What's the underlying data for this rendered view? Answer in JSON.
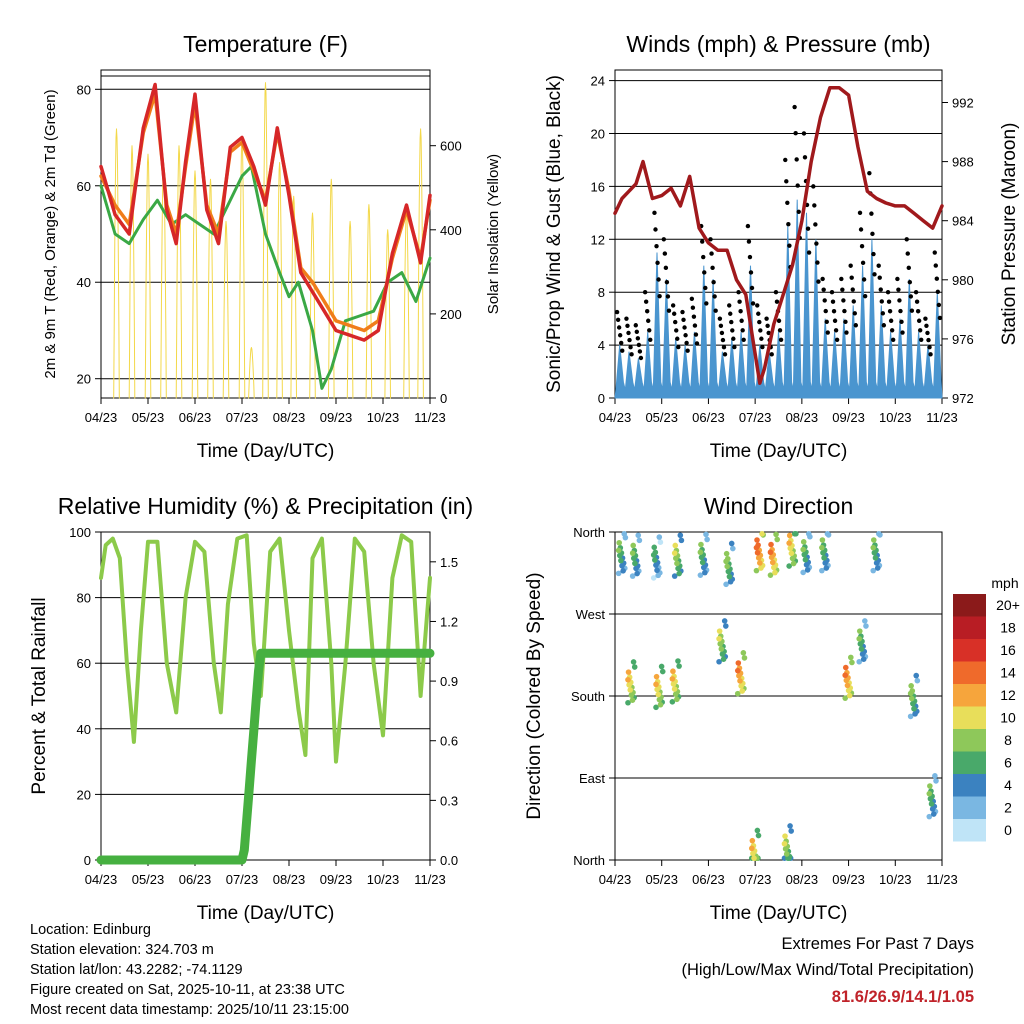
{
  "chart_data": [
    {
      "type": "line",
      "title": "Temperature (F)",
      "xlabel": "Time (Day/UTC)",
      "ylabel": "2m & 9m T (Red, Orange) & 2m Td (Green)",
      "ylabel_right": "Solar Insolation (Yellow)",
      "x_ticks": [
        "04/23",
        "05/23",
        "06/23",
        "07/23",
        "08/23",
        "09/23",
        "10/23",
        "11/23"
      ],
      "ylim": [
        16,
        84
      ],
      "y_ticks": [
        20,
        40,
        60,
        80
      ],
      "ylim_right": [
        0,
        780
      ],
      "y_ticks_right": [
        0,
        200,
        400,
        600
      ],
      "series": [
        {
          "name": "2m T",
          "color": "#d62728",
          "x": [
            0,
            0.3,
            0.6,
            0.9,
            1.15,
            1.4,
            1.6,
            1.8,
            2.0,
            2.25,
            2.5,
            2.75,
            3.0,
            3.25,
            3.5,
            3.75,
            4.0,
            4.25,
            4.5,
            4.75,
            5.0,
            5.3,
            5.6,
            5.9,
            6.2,
            6.5,
            6.8,
            7.0
          ],
          "values": [
            64,
            54,
            50,
            72,
            81,
            55,
            48,
            65,
            79,
            55,
            48,
            68,
            70,
            64,
            56,
            72,
            58,
            42,
            38,
            34,
            30,
            29,
            28,
            30,
            46,
            56,
            44,
            58
          ]
        },
        {
          "name": "9m T",
          "color": "#f07d1a",
          "x": [
            0,
            0.3,
            0.6,
            0.9,
            1.15,
            1.4,
            1.6,
            1.8,
            2.0,
            2.25,
            2.5,
            2.75,
            3.0,
            3.25,
            3.5,
            3.75,
            4.0,
            4.25,
            4.5,
            4.75,
            5.0,
            5.3,
            5.6,
            5.9,
            6.2,
            6.5,
            6.8,
            7.0
          ],
          "values": [
            62,
            56,
            52,
            71,
            79,
            56,
            50,
            64,
            77,
            56,
            50,
            67,
            69,
            63,
            57,
            71,
            59,
            43,
            40,
            36,
            32,
            31,
            30,
            32,
            45,
            55,
            45,
            57
          ]
        },
        {
          "name": "2m Td",
          "color": "#3aa845",
          "x": [
            0,
            0.3,
            0.6,
            0.9,
            1.2,
            1.5,
            1.8,
            2.1,
            2.4,
            2.7,
            3.0,
            3.2,
            3.5,
            3.8,
            4.0,
            4.2,
            4.5,
            4.7,
            4.9,
            5.2,
            5.5,
            5.8,
            6.1,
            6.4,
            6.7,
            7.0
          ],
          "values": [
            60,
            50,
            48,
            53,
            57,
            52,
            54,
            52,
            50,
            56,
            62,
            64,
            50,
            42,
            37,
            40,
            30,
            18,
            22,
            32,
            33,
            34,
            40,
            42,
            36,
            45
          ]
        },
        {
          "name": "Solar Insolation",
          "color": "#f3d84a",
          "axis": "right",
          "peak_x": [
            0.33,
            0.66,
            1.0,
            1.33,
            1.66,
            2.0,
            2.33,
            2.66,
            3.0,
            3.2,
            3.5,
            3.8,
            4.1,
            4.5,
            4.9,
            5.3,
            5.7,
            6.1,
            6.5,
            6.8
          ],
          "peak_values": [
            640,
            600,
            580,
            560,
            600,
            540,
            520,
            420,
            620,
            120,
            750,
            560,
            480,
            440,
            520,
            420,
            460,
            400,
            450,
            640
          ]
        }
      ]
    },
    {
      "type": "line",
      "title": "Winds (mph) & Pressure (mb)",
      "xlabel": "Time (Day/UTC)",
      "ylabel": "Sonic/Prop Wind & Gust (Blue, Black)",
      "ylabel_right": "Station Pressure (Maroon)",
      "x_ticks": [
        "04/23",
        "05/23",
        "06/23",
        "07/23",
        "08/23",
        "09/23",
        "10/23",
        "11/23"
      ],
      "ylim": [
        0,
        24.8
      ],
      "y_ticks": [
        0,
        4,
        8,
        12,
        16,
        20,
        24
      ],
      "ylim_right": [
        972,
        994.2
      ],
      "y_ticks_right": [
        972,
        976,
        980,
        984,
        988,
        992
      ],
      "series": [
        {
          "name": "Station Pressure",
          "color": "#a0191c",
          "axis": "right",
          "x": [
            0,
            0.15,
            0.3,
            0.45,
            0.6,
            0.8,
            1.0,
            1.2,
            1.4,
            1.6,
            1.8,
            2.0,
            2.2,
            2.4,
            2.6,
            2.8,
            3.0,
            3.1,
            3.2,
            3.4,
            3.6,
            3.8,
            4.0,
            4.2,
            4.4,
            4.6,
            4.8,
            5.0,
            5.2,
            5.4,
            5.6,
            5.8,
            6.0,
            6.2,
            6.4,
            6.6,
            6.8,
            7.0
          ],
          "values": [
            984.5,
            985.5,
            986,
            986.5,
            988,
            985.5,
            985.7,
            986.2,
            985,
            987,
            983.5,
            982.5,
            982,
            982,
            980,
            979,
            975,
            973,
            974,
            977,
            979,
            981,
            984,
            988,
            991,
            993,
            993,
            992.5,
            989,
            986,
            985.5,
            985.2,
            985,
            985,
            984.5,
            984,
            983.5,
            985
          ]
        },
        {
          "name": "Wind Gust",
          "color": "#000000",
          "style": "points",
          "x": [
            0.1,
            0.3,
            0.5,
            0.7,
            0.9,
            1.1,
            1.3,
            1.5,
            1.7,
            1.9,
            2.1,
            2.3,
            2.5,
            2.7,
            2.9,
            3.1,
            3.3,
            3.5,
            3.7,
            3.9,
            4.1,
            4.3,
            4.5,
            4.7,
            4.9,
            5.1,
            5.3,
            5.5,
            5.7,
            5.9,
            6.1,
            6.3,
            6.5,
            6.7,
            6.9
          ],
          "values": [
            6.5,
            6,
            5.5,
            8,
            14,
            12,
            7,
            6.5,
            7.5,
            13,
            12,
            6,
            7,
            8,
            13,
            7,
            6,
            8,
            18,
            22,
            20,
            16,
            9,
            8,
            9,
            10,
            14,
            17,
            10,
            8,
            9,
            12,
            8,
            6,
            11
          ]
        },
        {
          "name": "Sonic/Prop Wind",
          "color": "#4a95cf",
          "style": "area",
          "x": [
            0.1,
            0.3,
            0.5,
            0.7,
            0.9,
            1.1,
            1.3,
            1.5,
            1.7,
            1.9,
            2.1,
            2.3,
            2.5,
            2.7,
            2.9,
            3.1,
            3.3,
            3.5,
            3.7,
            3.9,
            4.1,
            4.3,
            4.5,
            4.7,
            4.9,
            5.1,
            5.3,
            5.5,
            5.7,
            5.9,
            6.1,
            6.3,
            6.5,
            6.7,
            6.9
          ],
          "values": [
            4,
            3.5,
            3,
            5,
            11,
            9,
            4.5,
            4,
            5,
            10,
            9,
            3.5,
            4.5,
            5,
            10,
            4,
            3.5,
            5,
            13,
            15,
            14,
            12,
            6,
            5,
            6,
            7,
            10,
            12,
            7,
            5,
            6,
            9,
            5,
            4,
            8
          ]
        }
      ]
    },
    {
      "type": "line",
      "title": "Relative Humidity (%) & Precipitation (in)",
      "xlabel": "Time (Day/UTC)",
      "ylabel": "Percent & Total Rainfall",
      "x_ticks": [
        "04/23",
        "05/23",
        "06/23",
        "07/23",
        "08/23",
        "09/23",
        "10/23",
        "11/23"
      ],
      "ylim": [
        0,
        100
      ],
      "y_ticks": [
        0,
        20,
        40,
        60,
        80,
        100
      ],
      "ylim_right": [
        0,
        1.65
      ],
      "y_ticks_right": [
        0.0,
        0.3,
        0.6,
        0.9,
        1.2,
        1.5
      ],
      "series": [
        {
          "name": "Relative Humidity",
          "color": "#8cca4a",
          "x": [
            0,
            0.1,
            0.25,
            0.4,
            0.55,
            0.7,
            0.85,
            1.0,
            1.2,
            1.4,
            1.6,
            1.8,
            2.0,
            2.2,
            2.4,
            2.55,
            2.7,
            2.9,
            3.1,
            3.25,
            3.4,
            3.6,
            3.8,
            4.0,
            4.2,
            4.35,
            4.5,
            4.7,
            4.9,
            5.0,
            5.2,
            5.4,
            5.6,
            5.8,
            6.0,
            6.2,
            6.4,
            6.6,
            6.8,
            7.0
          ],
          "values": [
            86,
            96,
            98,
            92,
            60,
            36,
            70,
            97,
            97,
            60,
            45,
            80,
            97,
            94,
            60,
            45,
            78,
            98,
            99,
            66,
            50,
            94,
            98,
            70,
            46,
            32,
            92,
            98,
            60,
            30,
            60,
            98,
            94,
            60,
            38,
            86,
            99,
            97,
            50,
            86
          ]
        },
        {
          "name": "Total Precipitation",
          "color": "#46b040",
          "axis": "right",
          "x": [
            0,
            3.0,
            3.05,
            3.1,
            3.15,
            3.2,
            3.25,
            3.3,
            3.35,
            3.4,
            3.5,
            7.0
          ],
          "values": [
            0,
            0,
            0.05,
            0.2,
            0.35,
            0.5,
            0.65,
            0.8,
            0.95,
            1.04,
            1.04,
            1.04
          ]
        }
      ]
    },
    {
      "type": "scatter",
      "title": "Wind Direction",
      "xlabel": "Time (Day/UTC)",
      "ylabel": "Direction (Colored By Speed)",
      "x_ticks": [
        "04/23",
        "05/23",
        "06/23",
        "07/23",
        "08/23",
        "09/23",
        "10/23",
        "11/23"
      ],
      "y_ticks": [
        "North",
        "East",
        "South",
        "West",
        "North"
      ],
      "ylim": [
        0,
        360
      ],
      "colorbar_title": "mph",
      "colorbar_labels": [
        "20+",
        "18",
        "16",
        "14",
        "12",
        "10",
        "8",
        "6",
        "4",
        "2",
        "0"
      ],
      "colorbar_colors": [
        "#8b1a1a",
        "#b81d24",
        "#d83027",
        "#ef6a2b",
        "#f6a53c",
        "#e8de5a",
        "#8ec85a",
        "#49a96a",
        "#3b82c0",
        "#7ab7e2",
        "#bfe4f7"
      ],
      "clusters": [
        {
          "x": 0.15,
          "dir": 337,
          "speed": 4
        },
        {
          "x": 0.45,
          "dir": 334,
          "speed": 4
        },
        {
          "x": 0.9,
          "dir": 332,
          "speed": 3
        },
        {
          "x": 0.35,
          "dir": 195,
          "speed": 8
        },
        {
          "x": 0.95,
          "dir": 190,
          "speed": 8
        },
        {
          "x": 1.35,
          "dir": 334,
          "speed": 6
        },
        {
          "x": 1.9,
          "dir": 335,
          "speed": 4
        },
        {
          "x": 1.3,
          "dir": 196,
          "speed": 8
        },
        {
          "x": 2.3,
          "dir": 240,
          "speed": 6
        },
        {
          "x": 2.45,
          "dir": 325,
          "speed": 5
        },
        {
          "x": 2.7,
          "dir": 205,
          "speed": 10
        },
        {
          "x": 3.1,
          "dir": 340,
          "speed": 11
        },
        {
          "x": 3.4,
          "dir": 335,
          "speed": 10
        },
        {
          "x": 3.0,
          "dir": 10,
          "speed": 8
        },
        {
          "x": 3.8,
          "dir": 345,
          "speed": 8
        },
        {
          "x": 3.7,
          "dir": 15,
          "speed": 6
        },
        {
          "x": 4.1,
          "dir": 338,
          "speed": 4
        },
        {
          "x": 4.5,
          "dir": 340,
          "speed": 4
        },
        {
          "x": 5.0,
          "dir": 200,
          "speed": 10
        },
        {
          "x": 5.3,
          "dir": 240,
          "speed": 4
        },
        {
          "x": 5.6,
          "dir": 340,
          "speed": 4
        },
        {
          "x": 6.4,
          "dir": 180,
          "speed": 5
        },
        {
          "x": 6.8,
          "dir": 70,
          "speed": 4
        }
      ]
    }
  ],
  "info": {
    "location": "Location: Edinburg",
    "elevation": "Station elevation: 324.703 m",
    "latlon": "Station lat/lon: 43.2282; -74.1129",
    "created": "Figure created on Sat, 2025-10-11, at 23:38 UTC",
    "recent": "Most recent data timestamp: 2025/10/11 23:15:00"
  },
  "extremes": {
    "title": "Extremes For Past 7 Days",
    "subtitle": "(High/Low/Max Wind/Total Precipitation)",
    "values": "81.6/26.9/14.1/1.05"
  }
}
